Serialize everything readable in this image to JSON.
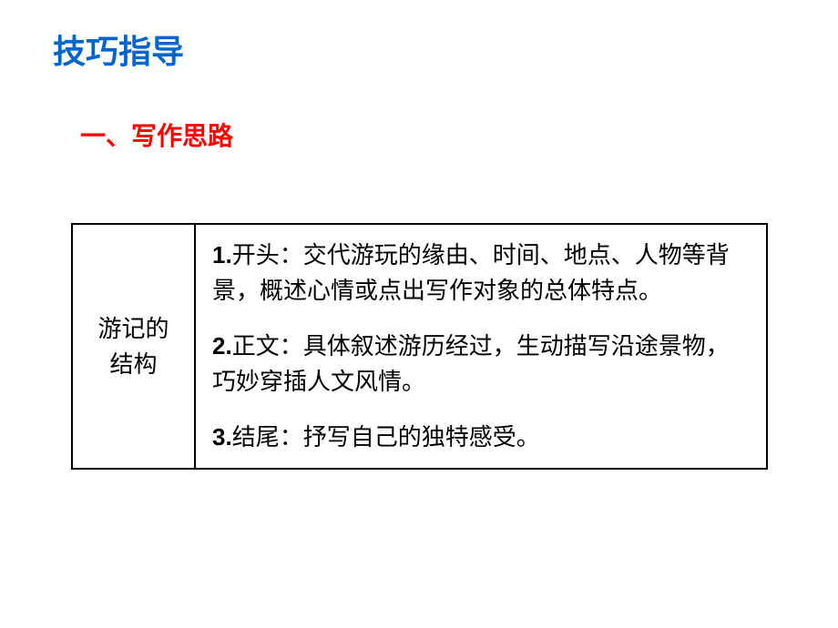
{
  "title": "技巧指导",
  "subtitle": "一、写作思路",
  "table": {
    "left_header_line1": "游记的",
    "left_header_line2": "结构",
    "items": [
      {
        "num": "1.",
        "label": "开头：",
        "text": "交代游玩的缘由、时间、地点、人物等背景，概述心情或点出写作对象的总体特点。"
      },
      {
        "num": "2.",
        "label": "正文：",
        "text": "具体叙述游历经过，生动描写沿途景物，巧妙穿插人文风情。"
      },
      {
        "num": "3.",
        "label": "结尾：",
        "text": "抒写自己的独特感受。"
      }
    ]
  },
  "colors": {
    "title_color": "#0066cc",
    "subtitle_color": "#ff0000",
    "text_color": "#000000",
    "border_color": "#000000",
    "background": "#ffffff"
  }
}
